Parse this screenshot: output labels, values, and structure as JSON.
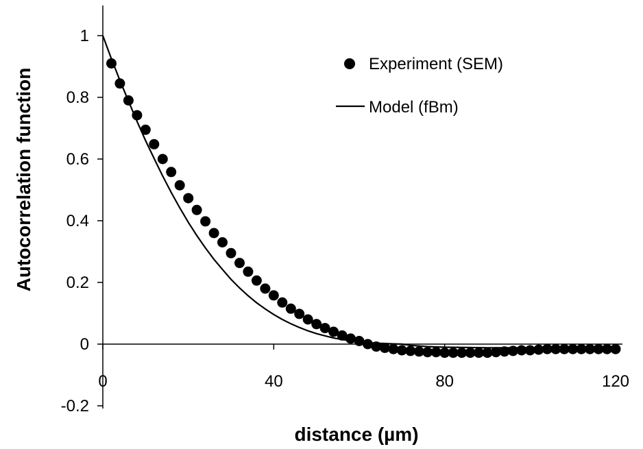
{
  "chart_data": {
    "type": "scatter",
    "xlabel": "distance (µm)",
    "ylabel": "Autocorrelation function",
    "xlim": [
      0,
      120
    ],
    "ylim": [
      -0.2,
      1.1
    ],
    "x_ticks": [
      "0",
      "40",
      "80",
      "120"
    ],
    "y_ticks": [
      "1",
      "0.8",
      "0.6",
      "0.4",
      "0.2",
      "0",
      "-0.2"
    ],
    "grid": false,
    "legend_position": "top-right",
    "series": [
      {
        "name": "Experiment (SEM)",
        "style": "markers",
        "color": "#000000",
        "x": [
          2,
          4,
          6,
          8,
          10,
          12,
          14,
          16,
          18,
          20,
          22,
          24,
          26,
          28,
          30,
          32,
          34,
          36,
          38,
          40,
          42,
          44,
          46,
          48,
          50,
          52,
          54,
          56,
          58,
          60,
          62,
          64,
          66,
          68,
          70,
          72,
          74,
          76,
          78,
          80,
          82,
          84,
          86,
          88,
          90,
          92,
          94,
          96,
          98,
          100,
          102,
          104,
          106,
          108,
          110,
          112,
          114,
          116,
          118,
          120
        ],
        "y": [
          0.91,
          0.845,
          0.79,
          0.742,
          0.695,
          0.648,
          0.6,
          0.558,
          0.515,
          0.473,
          0.435,
          0.398,
          0.36,
          0.33,
          0.295,
          0.263,
          0.235,
          0.206,
          0.18,
          0.158,
          0.135,
          0.115,
          0.098,
          0.08,
          0.065,
          0.052,
          0.04,
          0.028,
          0.018,
          0.01,
          0.0,
          -0.008,
          -0.012,
          -0.016,
          -0.02,
          -0.022,
          -0.024,
          -0.026,
          -0.026,
          -0.028,
          -0.028,
          -0.028,
          -0.028,
          -0.028,
          -0.028,
          -0.026,
          -0.024,
          -0.022,
          -0.02,
          -0.02,
          -0.018,
          -0.016,
          -0.016,
          -0.016,
          -0.016,
          -0.016,
          -0.016,
          -0.016,
          -0.016,
          -0.016
        ]
      },
      {
        "name": "Model (fBm)",
        "style": "line",
        "color": "#000000",
        "x": [
          0,
          2,
          4,
          6,
          8,
          10,
          12,
          14,
          16,
          18,
          20,
          22,
          24,
          26,
          28,
          30,
          32,
          34,
          36,
          38,
          40,
          42,
          44,
          46,
          48,
          50,
          52,
          54,
          56,
          58,
          60,
          62,
          64,
          66,
          68,
          70,
          72,
          74,
          76,
          78,
          80,
          85,
          90,
          95,
          100,
          105,
          110,
          115,
          120
        ],
        "y": [
          1.0,
          0.925,
          0.855,
          0.788,
          0.722,
          0.66,
          0.602,
          0.545,
          0.492,
          0.442,
          0.395,
          0.352,
          0.312,
          0.275,
          0.242,
          0.21,
          0.182,
          0.157,
          0.134,
          0.114,
          0.096,
          0.08,
          0.066,
          0.054,
          0.043,
          0.034,
          0.027,
          0.02,
          0.015,
          0.011,
          0.008,
          0.005,
          0.003,
          0.002,
          0.001,
          0.0,
          -0.004,
          -0.006,
          -0.008,
          -0.009,
          -0.01,
          -0.011,
          -0.012,
          -0.012,
          -0.012,
          -0.012,
          -0.012,
          -0.012,
          -0.012
        ]
      }
    ]
  }
}
